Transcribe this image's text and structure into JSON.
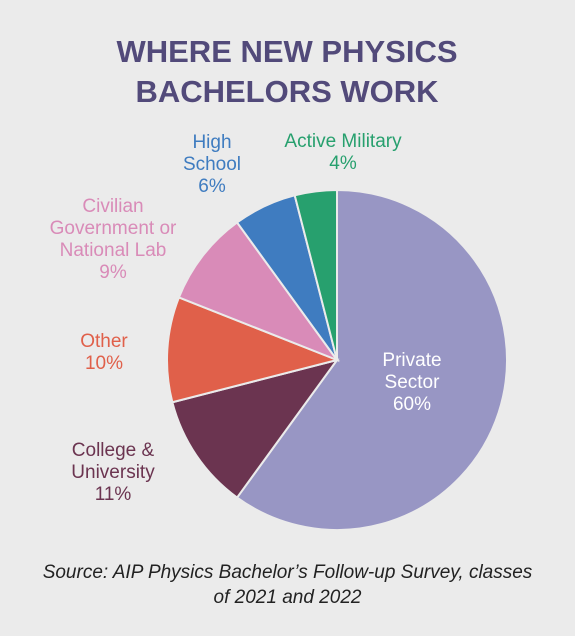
{
  "chart_data": {
    "type": "pie",
    "title": "WHERE NEW PHYSICS BACHELORS WORK",
    "categories": [
      "Private Sector",
      "College & University",
      "Other",
      "Civilian Government or National Lab",
      "High School",
      "Active Military"
    ],
    "values": [
      60,
      11,
      10,
      9,
      6,
      4
    ],
    "value_labels": [
      "60%",
      "11%",
      "10%",
      "9%",
      "6%",
      "4%"
    ],
    "colors": [
      "#9896c4",
      "#6b3450",
      "#e0604a",
      "#d98bb8",
      "#3f7cc0",
      "#27a06e"
    ],
    "source": "Source: AIP Physics Bachelor’s Follow-up Survey, classes of 2021 and 2022"
  }
}
